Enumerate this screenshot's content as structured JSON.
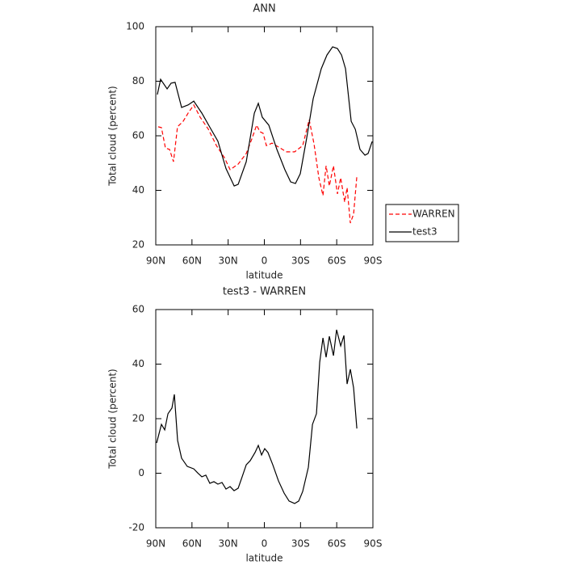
{
  "chart_data": [
    {
      "type": "line",
      "title": "ANN",
      "xlabel": "latitude",
      "ylabel": "Total cloud (percent)",
      "xlim": [
        90,
        -90
      ],
      "ylim": [
        20,
        100
      ],
      "xticks": [
        {
          "value": 90,
          "label": "90N"
        },
        {
          "value": 60,
          "label": "60N"
        },
        {
          "value": 30,
          "label": "30N"
        },
        0,
        {
          "value": -30,
          "label": "30S"
        },
        {
          "value": -60,
          "label": "60S"
        },
        {
          "value": -90,
          "label": "90S"
        }
      ],
      "yticks": [
        20,
        40,
        60,
        80,
        100
      ],
      "legend": "right",
      "series": [
        {
          "name": "WARREN",
          "color": "#ff0000",
          "linestyle": "dashed",
          "x": [
            88,
            85.3,
            82,
            78.6,
            75.3,
            72,
            67.3,
            63.2,
            58.5,
            53.2,
            46.4,
            39.7,
            33.1,
            28.4,
            21.7,
            15,
            10.4,
            6.4,
            3.7,
            1,
            -1.7,
            -6.4,
            -11.7,
            -18.4,
            -25.1,
            -31.8,
            -37.2,
            -41.2,
            -45.2,
            -48.6,
            -51.2,
            -53.9,
            -57.3,
            -60.6,
            -63.3,
            -66.6,
            -68.6,
            -71.3,
            -74,
            -76.7
          ],
          "values": [
            63.3,
            63,
            55.5,
            55,
            50.5,
            63.3,
            65.3,
            68.3,
            71.3,
            66.8,
            62.4,
            56.4,
            52,
            47.6,
            49.6,
            53.5,
            58.8,
            63.9,
            61.5,
            60.9,
            56.4,
            57.3,
            55.9,
            54.1,
            54.1,
            56.4,
            65.9,
            57,
            44.6,
            38.1,
            49,
            41.6,
            49,
            38.7,
            44.6,
            35.7,
            41,
            28,
            31.3,
            45.2
          ]
        },
        {
          "name": "test3",
          "color": "#000000",
          "linestyle": "solid",
          "x": [
            88.7,
            86,
            80.6,
            77.3,
            74,
            68.6,
            63.2,
            58.5,
            51.8,
            45,
            38.5,
            31.8,
            25,
            21.7,
            15,
            8.3,
            5,
            1.7,
            -3.7,
            -10.4,
            -17,
            -21.8,
            -25.8,
            -29.8,
            -35.2,
            -40.5,
            -47.2,
            -51.9,
            -56.6,
            -60.6,
            -64,
            -67.3,
            -72,
            -75.4,
            -79.3,
            -83.4,
            -86,
            -89.4
          ],
          "values": [
            75.1,
            80.7,
            77.2,
            79.3,
            79.6,
            70.4,
            71.3,
            72.7,
            68.3,
            63,
            58,
            48,
            41.6,
            42.2,
            50.5,
            68.3,
            71.9,
            66.8,
            63.9,
            55,
            47.6,
            43.1,
            42.5,
            46.1,
            59.4,
            73.6,
            84.6,
            89.6,
            92.6,
            92,
            89.6,
            84.6,
            65.3,
            62.4,
            55,
            52.9,
            53.5,
            57.9
          ]
        }
      ]
    },
    {
      "type": "line",
      "title": "test3 - WARREN",
      "xlabel": "latitude",
      "ylabel": "Total cloud (percent)",
      "xlim": [
        90,
        -90
      ],
      "ylim": [
        -20,
        60
      ],
      "xticks": [
        {
          "value": 90,
          "label": "90N"
        },
        {
          "value": 60,
          "label": "60N"
        },
        {
          "value": 30,
          "label": "30N"
        },
        0,
        {
          "value": -30,
          "label": "30S"
        },
        {
          "value": -60,
          "label": "60S"
        },
        {
          "value": -90,
          "label": "90S"
        }
      ],
      "yticks": [
        -20,
        0,
        20,
        40,
        60
      ],
      "series": [
        {
          "color": "#000000",
          "linestyle": "solid",
          "x": [
            89.3,
            85.3,
            82.6,
            79.9,
            76.6,
            74.6,
            71.9,
            68.6,
            63.9,
            58.5,
            55.2,
            51.8,
            48.5,
            45.2,
            41.8,
            38.5,
            35.1,
            31.8,
            28.4,
            25.1,
            21.7,
            18.4,
            15,
            11.7,
            7.7,
            5,
            2.3,
            -0.3,
            -3,
            -7,
            -11.7,
            -16.4,
            -20.5,
            -25.1,
            -28.5,
            -31.8,
            -36.5,
            -39.9,
            -43.2,
            -45.9,
            -48.6,
            -51.2,
            -53.9,
            -57.3,
            -59.9,
            -63.3,
            -66,
            -68.6,
            -71.3,
            -74,
            -76.7
          ],
          "values": [
            11.1,
            17.9,
            15.9,
            21.8,
            23.9,
            28.9,
            12,
            5.5,
            2.5,
            1.6,
            0.1,
            -1.3,
            -0.7,
            -3.7,
            -3.1,
            -4,
            -3.4,
            -5.8,
            -4.9,
            -6.4,
            -5.5,
            -1.3,
            3.1,
            4.6,
            7.6,
            10.2,
            6.7,
            9,
            7.6,
            3.1,
            -2.8,
            -7.3,
            -10.2,
            -11.1,
            -10.2,
            -6.7,
            2.2,
            17.9,
            21.8,
            40.7,
            49.6,
            42.5,
            50.2,
            43.1,
            52.6,
            46.7,
            50.5,
            32.7,
            38.1,
            31.3,
            16.4
          ]
        }
      ]
    }
  ]
}
